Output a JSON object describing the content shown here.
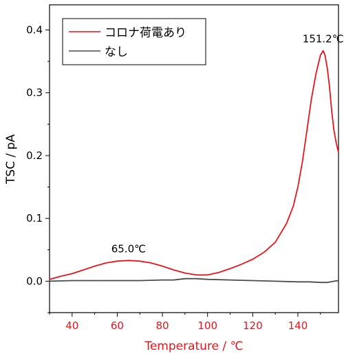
{
  "chart_data": {
    "type": "line",
    "xlabel": "Temperature / ℃",
    "ylabel": "TSC / pA",
    "xlim": [
      30,
      158
    ],
    "ylim": [
      -0.05,
      0.44
    ],
    "x_ticks": [
      40,
      60,
      80,
      100,
      120,
      140
    ],
    "y_ticks": [
      0.0,
      0.1,
      0.2,
      0.3,
      0.4
    ],
    "x_tick_labels": [
      "40",
      "60",
      "80",
      "100",
      "120",
      "140"
    ],
    "y_tick_labels": [
      "0.0",
      "0.1",
      "0.2",
      "0.3",
      "0.4"
    ],
    "grid": false,
    "legend_position": "top-left",
    "series": [
      {
        "name": "コロナ荷電あり",
        "color": "#e8141c",
        "x": [
          30,
          35,
          40,
          45,
          50,
          55,
          60,
          65,
          70,
          75,
          80,
          85,
          90,
          95,
          100,
          105,
          110,
          115,
          120,
          125,
          130,
          135,
          138,
          140,
          142,
          144,
          146,
          148,
          150,
          151.2,
          152,
          153,
          154,
          155,
          156,
          157,
          158
        ],
        "y": [
          0.003,
          0.008,
          0.012,
          0.018,
          0.024,
          0.029,
          0.032,
          0.033,
          0.032,
          0.029,
          0.024,
          0.018,
          0.013,
          0.01,
          0.01,
          0.014,
          0.02,
          0.027,
          0.035,
          0.046,
          0.062,
          0.092,
          0.12,
          0.15,
          0.19,
          0.24,
          0.29,
          0.33,
          0.36,
          0.367,
          0.36,
          0.34,
          0.31,
          0.27,
          0.24,
          0.22,
          0.205
        ]
      },
      {
        "name": "なし",
        "color": "#4a4a4a",
        "x": [
          30,
          40,
          50,
          60,
          70,
          80,
          85,
          90,
          95,
          100,
          110,
          120,
          130,
          140,
          145,
          150,
          153,
          156,
          158
        ],
        "y": [
          0.0,
          0.001,
          0.001,
          0.001,
          0.001,
          0.002,
          0.002,
          0.004,
          0.004,
          0.003,
          0.002,
          0.001,
          0.0,
          -0.001,
          -0.001,
          -0.002,
          -0.002,
          0.0,
          0.001
        ]
      }
    ],
    "annotations": [
      {
        "text": "65.0℃",
        "x": 65,
        "y": 0.033
      },
      {
        "text": "151.2℃",
        "x": 151.2,
        "y": 0.367
      }
    ]
  }
}
